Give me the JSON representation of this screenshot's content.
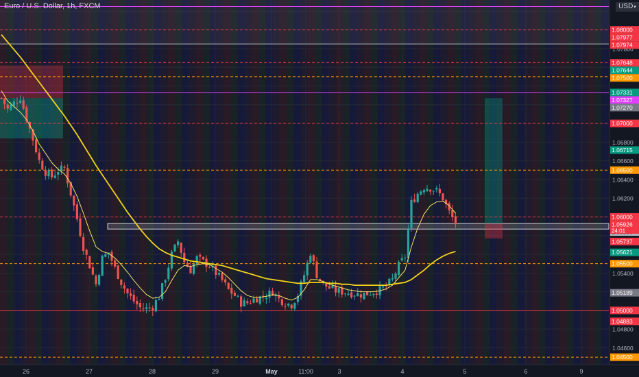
{
  "header": {
    "symbol_title": "Euro / U.S. Dollar, 1h, FXCM",
    "currency_button": "USD",
    "chevron_icon": "chevron-down-icon"
  },
  "countdown": "24:01",
  "colors": {
    "background": "#131722",
    "up_candle": "#26a69a",
    "down_candle": "#ef5350",
    "ma_fast": "#f5e26b",
    "ma_slow": "#f2d31b",
    "level_red": "#f23645",
    "level_orange": "#ff9800",
    "level_magenta": "#e040fb",
    "zone_gray": "#787b86"
  },
  "chart_data": {
    "type": "candlestick",
    "instrument": "Euro / U.S. Dollar",
    "timeframe": "1h",
    "source": "FXCM",
    "ylim": [
      1.0442,
      1.0832
    ],
    "x_ticks": [
      "26",
      "27",
      "28",
      "29",
      "May",
      "11:00",
      "3",
      "4",
      "5",
      "6",
      "9"
    ],
    "y_ticks": [
      "1.07800",
      "1.07200",
      "1.06800",
      "1.06600",
      "1.06400",
      "1.06200",
      "1.05400",
      "1.04800",
      "1.04600"
    ],
    "price_labels": [
      {
        "text": "1.08000",
        "value": 1.08,
        "color": "#f23645"
      },
      {
        "text": "1.07977",
        "value": 1.07977,
        "color": "#f23645"
      },
      {
        "text": "1.07974",
        "value": 1.07974,
        "color": "#f23645"
      },
      {
        "text": "1.07648",
        "value": 1.07648,
        "color": "#f23645"
      },
      {
        "text": "1.07644",
        "value": 1.07644,
        "color": "#089981"
      },
      {
        "text": "1.07500",
        "value": 1.075,
        "color": "#ff9800"
      },
      {
        "text": "1.07331",
        "value": 1.07331,
        "color": "#089981"
      },
      {
        "text": "1.07327",
        "value": 1.07327,
        "color": "#e040fb"
      },
      {
        "text": "1.07270",
        "value": 1.0727,
        "color": "#787b86"
      },
      {
        "text": "1.07000",
        "value": 1.07,
        "color": "#f23645"
      },
      {
        "text": "1.06715",
        "value": 1.06715,
        "color": "#089981"
      },
      {
        "text": "1.06500",
        "value": 1.065,
        "color": "#ff9800"
      },
      {
        "text": "1.06000",
        "value": 1.06,
        "color": "#f23645"
      },
      {
        "text": "1.05926",
        "value": 1.05926,
        "color": "#f23645"
      },
      {
        "text": "1.05900",
        "value": 1.059,
        "color": "#b2b5be"
      },
      {
        "text": "1.05737",
        "value": 1.05737,
        "color": "#f23645"
      },
      {
        "text": "1.05621",
        "value": 1.05621,
        "color": "#089981"
      },
      {
        "text": "1.05500",
        "value": 1.055,
        "color": "#ff9800"
      },
      {
        "text": "1.05189",
        "value": 1.05189,
        "color": "#787b86"
      },
      {
        "text": "1.05000",
        "value": 1.05,
        "color": "#f23645"
      },
      {
        "text": "1.04883",
        "value": 1.04883,
        "color": "#f23645"
      },
      {
        "text": "1.04500",
        "value": 1.045,
        "color": "#ff9800"
      }
    ],
    "horizontal_levels": [
      {
        "value": 1.0825,
        "style": "solid",
        "color": "#e040fb"
      },
      {
        "value": 1.08,
        "style": "dashed",
        "color": "#f23645"
      },
      {
        "value": 1.0785,
        "style": "solid",
        "color": "#b2b5be"
      },
      {
        "value": 1.0765,
        "style": "dashed",
        "color": "#f23645"
      },
      {
        "value": 1.075,
        "style": "dashed",
        "color": "#ff9800"
      },
      {
        "value": 1.0733,
        "style": "solid",
        "color": "#e040fb"
      },
      {
        "value": 1.07,
        "style": "dashed",
        "color": "#f23645"
      },
      {
        "value": 1.065,
        "style": "dashed",
        "color": "#ff9800"
      },
      {
        "value": 1.06,
        "style": "dashed",
        "color": "#f23645"
      },
      {
        "value": 1.055,
        "style": "dashed",
        "color": "#ff9800"
      },
      {
        "value": 1.05,
        "style": "solid",
        "color": "#f23645"
      },
      {
        "value": 1.045,
        "style": "dashed",
        "color": "#ff9800"
      }
    ],
    "zones": [
      {
        "kind": "gray-box",
        "t0": 17,
        "t1": 100,
        "p0": 1.0593,
        "p1": 1.0587
      },
      {
        "kind": "long-profit",
        "t0": 80,
        "t1": 83.5,
        "p0": 1.0727,
        "p1": 1.0593
      },
      {
        "kind": "long-stop",
        "t0": 80,
        "t1": 83.5,
        "p0": 1.0593,
        "p1": 1.0577
      },
      {
        "kind": "old-stop",
        "t0": 0,
        "t1": 10.5,
        "p0": 1.0762,
        "p1": 1.0727
      },
      {
        "kind": "old-profit",
        "t0": 0,
        "t1": 10.5,
        "p0": 1.0727,
        "p1": 1.0684
      }
    ],
    "ohlc_anchor_series": [
      1.0727,
      1.0715,
      1.0722,
      1.0728,
      1.0705,
      1.0683,
      1.066,
      1.0648,
      1.0643,
      1.065,
      1.0652,
      1.0625,
      1.0598,
      1.0568,
      1.0548,
      1.0528,
      1.0556,
      1.0562,
      1.0545,
      1.053,
      1.0518,
      1.051,
      1.0503,
      1.0502,
      1.0504,
      1.0515,
      1.0535,
      1.056,
      1.0574,
      1.0552,
      1.0543,
      1.0556,
      1.0552,
      1.0548,
      1.054,
      1.0532,
      1.0522,
      1.0516,
      1.0508,
      1.0508,
      1.0512,
      1.0514,
      1.0516,
      1.052,
      1.0512,
      1.0508,
      1.0506,
      1.0517,
      1.0538,
      1.0562,
      1.0538,
      1.0528,
      1.0524,
      1.0521,
      1.052,
      1.0519,
      1.0518,
      1.0517,
      1.0518,
      1.052,
      1.0522,
      1.0526,
      1.0533,
      1.0548,
      1.0558,
      1.0615,
      1.0625,
      1.0632,
      1.0631,
      1.0628,
      1.062,
      1.0605,
      1.0593
    ],
    "series": [
      {
        "name": "MA fast",
        "color": "#f5e26b",
        "values": [
          1.0735,
          1.0724,
          1.0718,
          1.0712,
          1.0704,
          1.0692,
          1.0678,
          1.0668,
          1.0658,
          1.0651,
          1.0646,
          1.0636,
          1.0622,
          1.0604,
          1.0585,
          1.0568,
          1.0563,
          1.0561,
          1.0556,
          1.0549,
          1.0541,
          1.0532,
          1.0524,
          1.0517,
          1.0513,
          1.0514,
          1.052,
          1.0532,
          1.0543,
          1.0548,
          1.0547,
          1.0549,
          1.055,
          1.0549,
          1.0545,
          1.0541,
          1.0535,
          1.0528,
          1.0521,
          1.0516,
          1.0514,
          1.0514,
          1.0515,
          1.0517,
          1.0516,
          1.0513,
          1.0511,
          1.0514,
          1.0522,
          1.0533,
          1.0533,
          1.0531,
          1.0528,
          1.0526,
          1.0524,
          1.0522,
          1.0521,
          1.052,
          1.052,
          1.052,
          1.0521,
          1.0523,
          1.0527,
          1.0535,
          1.0543,
          1.0568,
          1.0588,
          1.0603,
          1.0612,
          1.0616,
          1.0617,
          1.0612,
          1.0604
        ]
      },
      {
        "name": "MA slow",
        "color": "#f2d31b",
        "values": [
          1.0795,
          1.0787,
          1.0779,
          1.0771,
          1.0762,
          1.0753,
          1.0744,
          1.0735,
          1.0726,
          1.0717,
          1.0708,
          1.0698,
          1.0688,
          1.0677,
          1.0666,
          1.0655,
          1.0645,
          1.0635,
          1.0625,
          1.0615,
          1.0605,
          1.0596,
          1.0587,
          1.0579,
          1.0572,
          1.0566,
          1.0562,
          1.0559,
          1.0557,
          1.0555,
          1.0553,
          1.0552,
          1.0551,
          1.055,
          1.0549,
          1.0548,
          1.0546,
          1.0544,
          1.0542,
          1.054,
          1.0538,
          1.0536,
          1.0534,
          1.0533,
          1.0532,
          1.0531,
          1.053,
          1.0529,
          1.0529,
          1.053,
          1.053,
          1.053,
          1.0529,
          1.0529,
          1.0528,
          1.0528,
          1.0527,
          1.0527,
          1.0527,
          1.0527,
          1.0527,
          1.0527,
          1.0528,
          1.0529,
          1.053,
          1.0533,
          1.0538,
          1.0543,
          1.0549,
          1.0554,
          1.0558,
          1.0561,
          1.0563
        ]
      }
    ]
  }
}
